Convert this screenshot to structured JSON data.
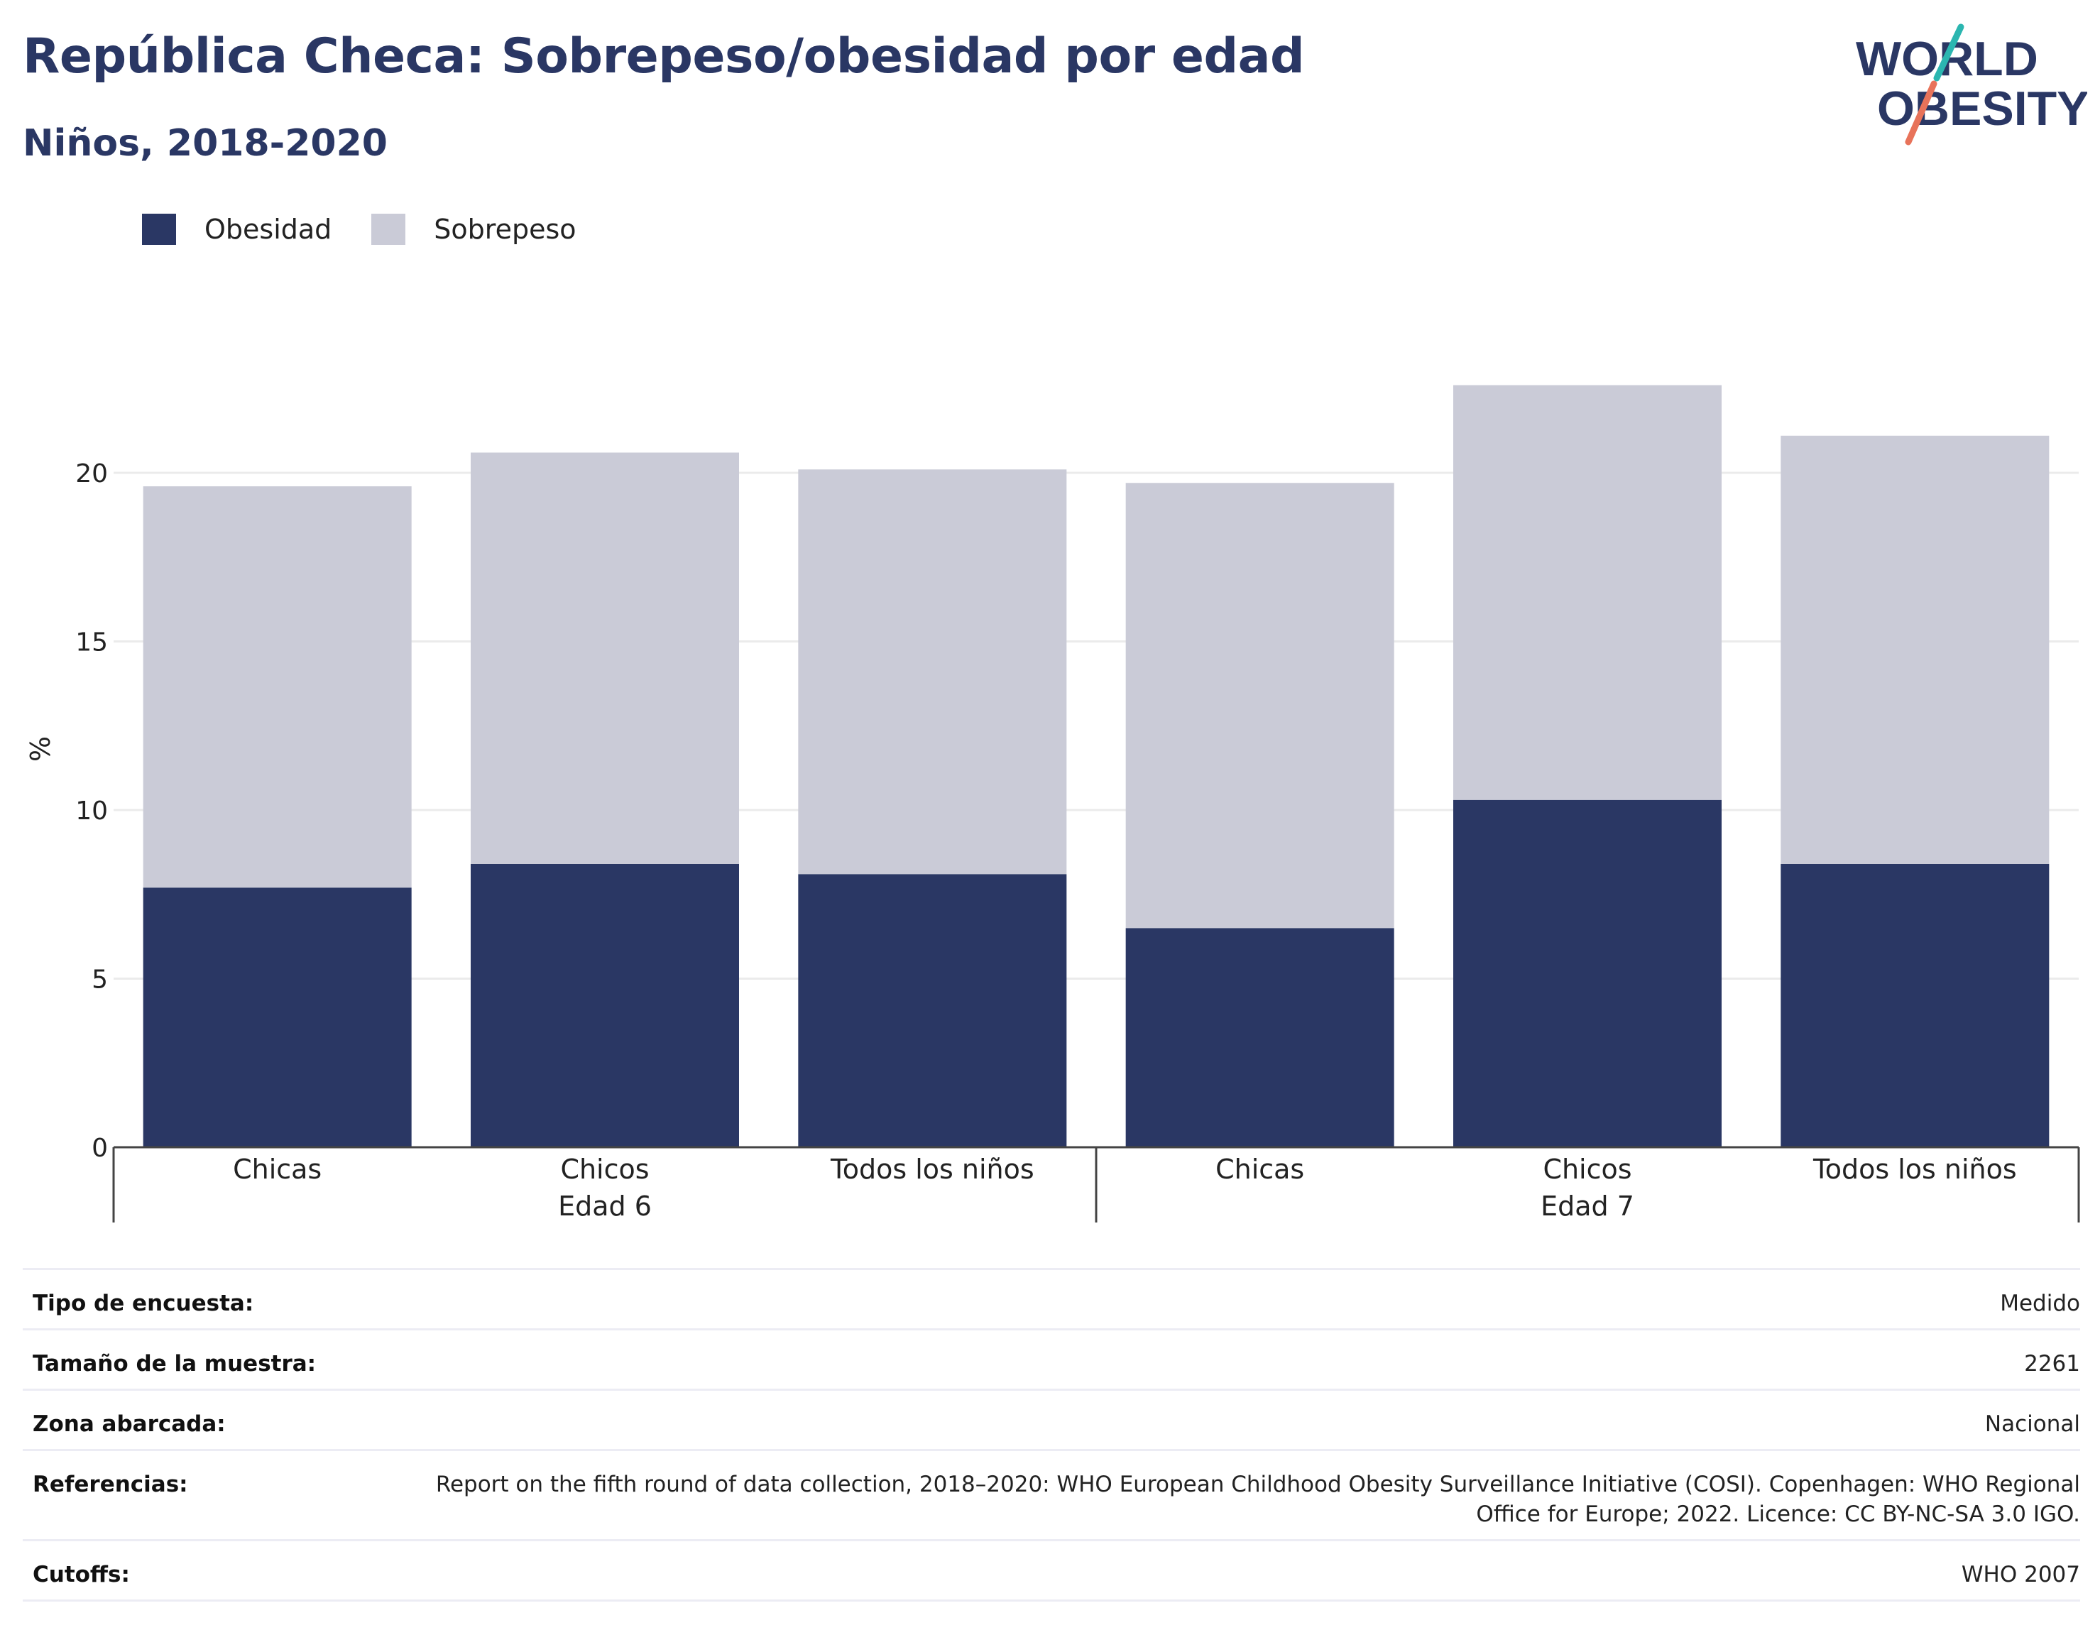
{
  "header": {
    "title": "República Checa: Sobrepeso/obesidad por edad",
    "subtitle": "Niños, 2018-2020"
  },
  "logo": {
    "line1": "WORLD",
    "line2": "OBESITY"
  },
  "colors": {
    "obesity": "#2a3764",
    "overweight": "#cacbd7",
    "text": "#2a3764",
    "logo_teal": "#2bb6b0",
    "logo_coral": "#e8735a"
  },
  "chart_data": {
    "type": "bar",
    "stacked": true,
    "title": "República Checa: Sobrepeso/obesidad por edad",
    "subtitle": "Niños, 2018-2020",
    "ylabel": "%",
    "ylim": [
      0,
      25
    ],
    "yticks": [
      0,
      5,
      10,
      15,
      20
    ],
    "grid": true,
    "legend_position": "top-left",
    "groups": [
      {
        "label": "Edad 6",
        "categories": [
          "Chicas",
          "Chicos",
          "Todos los niños"
        ]
      },
      {
        "label": "Edad 7",
        "categories": [
          "Chicas",
          "Chicos",
          "Todos los niños"
        ]
      }
    ],
    "categories": [
      "Chicas",
      "Chicos",
      "Todos los niños",
      "Chicas",
      "Chicos",
      "Todos los niños"
    ],
    "series": [
      {
        "name": "Obesidad",
        "color": "#2a3764",
        "values": [
          7.7,
          8.4,
          8.1,
          6.5,
          10.3,
          8.4
        ]
      },
      {
        "name": "Sobrepeso",
        "color": "#cacbd7",
        "values": [
          11.9,
          12.2,
          12.0,
          13.2,
          12.3,
          12.7
        ]
      }
    ]
  },
  "info": [
    {
      "label": "Tipo de encuesta:",
      "value": "Medido"
    },
    {
      "label": "Tamaño de la muestra:",
      "value": "2261"
    },
    {
      "label": "Zona abarcada:",
      "value": "Nacional"
    },
    {
      "label": "Referencias:",
      "value": "Report on the fifth round of data collection, 2018–2020: WHO European Childhood Obesity Surveillance Initiative (COSI). Copenhagen: WHO Regional Office for Europe; 2022. Licence: CC BY-NC-SA 3.0 IGO."
    },
    {
      "label": "Cutoffs:",
      "value": "WHO 2007"
    }
  ]
}
